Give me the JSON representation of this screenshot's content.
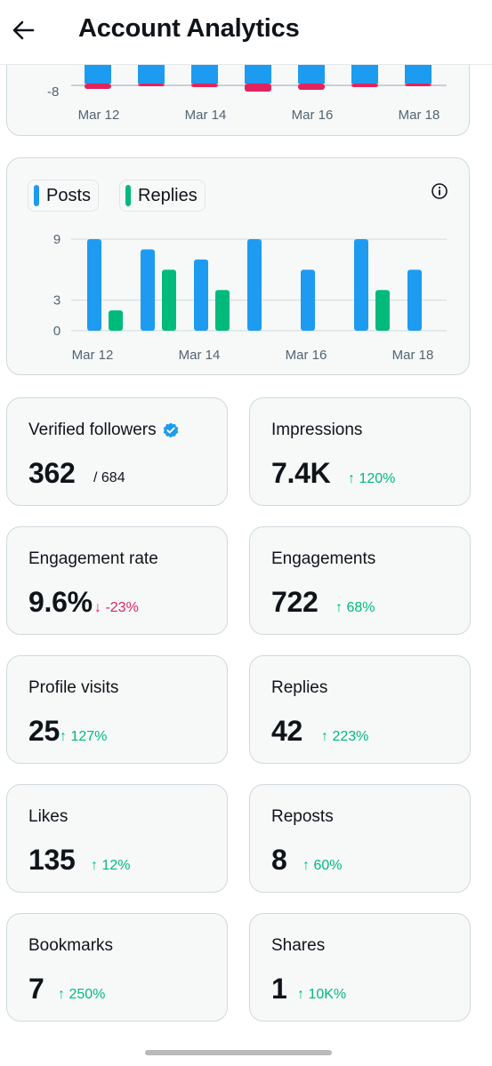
{
  "header": {
    "title": "Account Analytics",
    "back_icon": "arrow-left-icon"
  },
  "top_chart": {
    "y_tick": "-8",
    "x_labels": [
      "Mar 12",
      "Mar 14",
      "Mar 16",
      "Mar 18"
    ]
  },
  "posts_chart": {
    "legend": [
      {
        "label": "Posts",
        "color": "#1d9bf0"
      },
      {
        "label": "Replies",
        "color": "#00ba7c"
      }
    ],
    "info_icon": "info-icon"
  },
  "chart_data": {
    "type": "bar",
    "categories": [
      "Mar 12",
      "Mar 13",
      "Mar 14",
      "Mar 15",
      "Mar 16",
      "Mar 17",
      "Mar 18"
    ],
    "series": [
      {
        "name": "Posts",
        "values": [
          9,
          8,
          7,
          9,
          6,
          9,
          6
        ]
      },
      {
        "name": "Replies",
        "values": [
          2,
          6,
          4,
          0,
          0,
          4,
          0
        ]
      }
    ],
    "y_ticks": [
      "9",
      "3",
      "0"
    ],
    "x_tick_labels": [
      "Mar 12",
      "Mar 14",
      "Mar 16",
      "Mar 18"
    ],
    "ylim": [
      0,
      9
    ]
  },
  "metrics": [
    {
      "label": "Verified followers",
      "value": "362",
      "sub": "/ 684",
      "verified_icon": "verified-badge-icon"
    },
    {
      "label": "Impressions",
      "value": "7.4K",
      "change": "↑ 120%",
      "direction": "up"
    },
    {
      "label": "Engagement rate",
      "value": "9.6%",
      "change": "↓ -23%",
      "direction": "down"
    },
    {
      "label": "Engagements",
      "value": "722",
      "change": "↑ 68%",
      "direction": "up"
    },
    {
      "label": "Profile visits",
      "value": "25",
      "change": "↑ 127%",
      "direction": "up"
    },
    {
      "label": "Replies",
      "value": "42",
      "change": "↑ 223%",
      "direction": "up"
    },
    {
      "label": "Likes",
      "value": "135",
      "change": "↑ 12%",
      "direction": "up"
    },
    {
      "label": "Reposts",
      "value": "8",
      "change": "↑ 60%",
      "direction": "up"
    },
    {
      "label": "Bookmarks",
      "value": "7",
      "change": "↑ 250%",
      "direction": "up"
    },
    {
      "label": "Shares",
      "value": "1",
      "change": "↑ 10K%",
      "direction": "up"
    }
  ]
}
